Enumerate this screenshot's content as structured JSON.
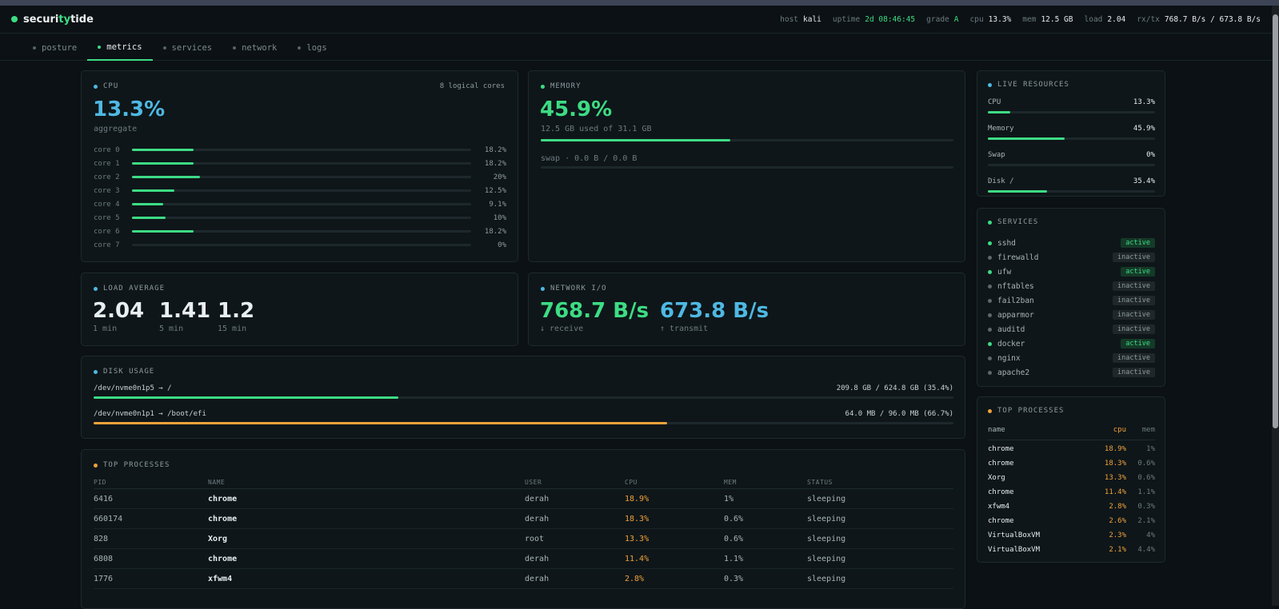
{
  "app": {
    "name_prefix": "securi",
    "name_accent": "ty",
    "name_suffix": "tide"
  },
  "header": {
    "host_label": "host",
    "host": "kali",
    "uptime_label": "uptime",
    "uptime": "2d 08:46:45",
    "grade_label": "grade",
    "grade": "A",
    "cpu_label": "cpu",
    "cpu": "13.3%",
    "mem_label": "mem",
    "mem": "12.5 GB",
    "load_label": "load",
    "load": "2.04",
    "rxtx_label": "rx/tx",
    "rxtx": "768.7 B/s / 673.8 B/s"
  },
  "tabs": [
    {
      "label": "posture"
    },
    {
      "label": "metrics"
    },
    {
      "label": "services"
    },
    {
      "label": "network"
    },
    {
      "label": "logs"
    }
  ],
  "cpu": {
    "title": "CPU",
    "cores_label": "8 logical cores",
    "value": "13.3%",
    "sub": "aggregate",
    "cores": [
      {
        "label": "core 0",
        "value": "18.2%",
        "pct": 18.2
      },
      {
        "label": "core 1",
        "value": "18.2%",
        "pct": 18.2
      },
      {
        "label": "core 2",
        "value": "20%",
        "pct": 20
      },
      {
        "label": "core 3",
        "value": "12.5%",
        "pct": 12.5
      },
      {
        "label": "core 4",
        "value": "9.1%",
        "pct": 9.1
      },
      {
        "label": "core 5",
        "value": "10%",
        "pct": 10
      },
      {
        "label": "core 6",
        "value": "18.2%",
        "pct": 18.2
      },
      {
        "label": "core 7",
        "value": "0%",
        "pct": 0
      }
    ]
  },
  "memory": {
    "title": "MEMORY",
    "value": "45.9%",
    "sub": "12.5 GB used of 31.1 GB",
    "pct": 45.9,
    "swap": "swap · 0.0 B / 0.0 B",
    "swap_pct": 0
  },
  "load": {
    "title": "LOAD AVERAGE",
    "items": [
      {
        "value": "2.04",
        "label": "1 min"
      },
      {
        "value": "1.41",
        "label": "5 min"
      },
      {
        "value": "1.2",
        "label": "15 min"
      }
    ]
  },
  "network": {
    "title": "NETWORK I/O",
    "rx": "768.7 B/s",
    "rx_label": "↓ receive",
    "tx": "673.8 B/s",
    "tx_label": "↑ transmit"
  },
  "disk": {
    "title": "DISK USAGE",
    "items": [
      {
        "name": "/dev/nvme0n1p5 → /",
        "usage": "209.8 GB / 624.8 GB (35.4%)",
        "pct": 35.4,
        "color": "green"
      },
      {
        "name": "/dev/nvme0n1p1 → /boot/efi",
        "usage": "64.0 MB / 96.0 MB (66.7%)",
        "pct": 66.7,
        "color": "orange"
      }
    ]
  },
  "processes": {
    "title": "TOP PROCESSES",
    "columns": [
      "PID",
      "NAME",
      "USER",
      "CPU",
      "MEM",
      "STATUS"
    ],
    "rows": [
      [
        "6416",
        "chrome",
        "derah",
        "18.9%",
        "1%",
        "sleeping"
      ],
      [
        "660174",
        "chrome",
        "derah",
        "18.3%",
        "0.6%",
        "sleeping"
      ],
      [
        "828",
        "Xorg",
        "root",
        "13.3%",
        "0.6%",
        "sleeping"
      ],
      [
        "6808",
        "chrome",
        "derah",
        "11.4%",
        "1.1%",
        "sleeping"
      ],
      [
        "1776",
        "xfwm4",
        "derah",
        "2.8%",
        "0.3%",
        "sleeping"
      ]
    ]
  },
  "live": {
    "title": "LIVE RESOURCES",
    "items": [
      {
        "label": "CPU",
        "value": "13.3%",
        "pct": 13.3
      },
      {
        "label": "Memory",
        "value": "45.9%",
        "pct": 45.9
      },
      {
        "label": "Swap",
        "value": "0%",
        "pct": 0
      },
      {
        "label": "Disk /",
        "value": "35.4%",
        "pct": 35.4
      }
    ]
  },
  "services": {
    "title": "SERVICES",
    "items": [
      {
        "name": "sshd",
        "status": "active"
      },
      {
        "name": "firewalld",
        "status": "inactive"
      },
      {
        "name": "ufw",
        "status": "active"
      },
      {
        "name": "nftables",
        "status": "inactive"
      },
      {
        "name": "fail2ban",
        "status": "inactive"
      },
      {
        "name": "apparmor",
        "status": "inactive"
      },
      {
        "name": "auditd",
        "status": "inactive"
      },
      {
        "name": "docker",
        "status": "active"
      },
      {
        "name": "nginx",
        "status": "inactive"
      },
      {
        "name": "apache2",
        "status": "inactive"
      }
    ]
  },
  "side_processes": {
    "title": "TOP PROCESSES",
    "columns": [
      "name",
      "cpu",
      "mem"
    ],
    "rows": [
      [
        "chrome",
        "18.9%",
        "1%"
      ],
      [
        "chrome",
        "18.3%",
        "0.6%"
      ],
      [
        "Xorg",
        "13.3%",
        "0.6%"
      ],
      [
        "chrome",
        "11.4%",
        "1.1%"
      ],
      [
        "xfwm4",
        "2.8%",
        "0.3%"
      ],
      [
        "chrome",
        "2.6%",
        "2.1%"
      ],
      [
        "VirtualBoxVM",
        "2.3%",
        "4%"
      ],
      [
        "VirtualBoxVM",
        "2.1%",
        "4.4%"
      ]
    ]
  },
  "colors": {
    "accent": "#3ddc84",
    "cpu": "#4fb8e3",
    "warn": "#f0a23b"
  }
}
